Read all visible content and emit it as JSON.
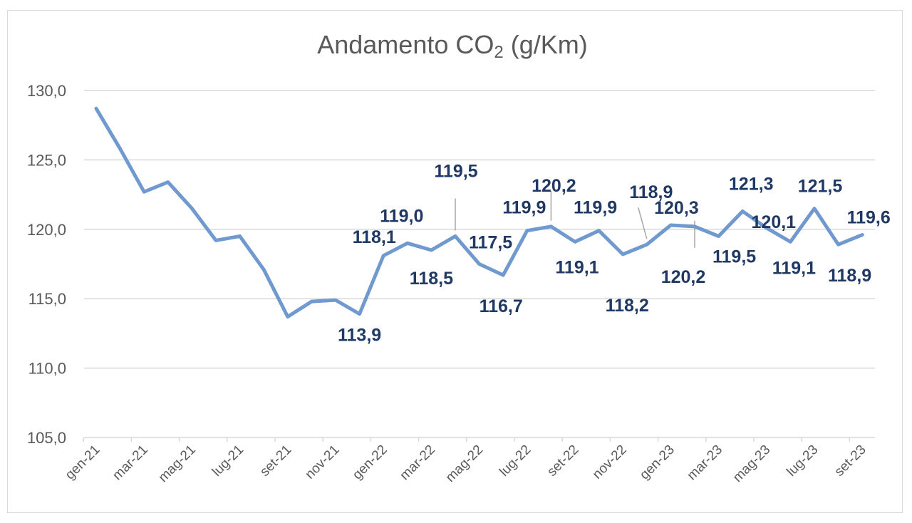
{
  "chart_data": {
    "type": "line",
    "title_main": "Andamento CO",
    "title_sub": "2",
    "title_tail": " (g/Km)",
    "ylim": [
      105,
      130
    ],
    "yticks": [
      "130,0",
      "125,0",
      "120,0",
      "115,0",
      "110,0",
      "105,0"
    ],
    "ytick_values": [
      130,
      125,
      120,
      115,
      110,
      105
    ],
    "grid": true,
    "line_color": "#6f99cf",
    "label_color": "#1f3864",
    "x": [
      "gen-21",
      "feb-21",
      "mar-21",
      "apr-21",
      "mag-21",
      "giu-21",
      "lug-21",
      "ago-21",
      "set-21",
      "ott-21",
      "nov-21",
      "dic-21",
      "gen-22",
      "feb-22",
      "mar-22",
      "apr-22",
      "mag-22",
      "giu-22",
      "lug-22",
      "ago-22",
      "set-22",
      "ott-22",
      "nov-22",
      "dic-22",
      "gen-23",
      "feb-23",
      "mar-23",
      "apr-23",
      "mag-23",
      "giu-23",
      "lug-23",
      "ago-23",
      "set-23"
    ],
    "xtick_labels": [
      "gen-21",
      "mar-21",
      "mag-21",
      "lug-21",
      "set-21",
      "nov-21",
      "gen-22",
      "mar-22",
      "mag-22",
      "lug-22",
      "set-22",
      "nov-22",
      "gen-23",
      "mar-23",
      "mag-23",
      "lug-23",
      "set-23"
    ],
    "series": [
      {
        "values": [
          128.7,
          125.8,
          122.7,
          123.4,
          121.5,
          119.2,
          119.5,
          117.1,
          113.7,
          114.8,
          114.9,
          113.9,
          118.1,
          119.0,
          118.5,
          119.5,
          117.5,
          116.7,
          119.9,
          120.2,
          119.1,
          119.9,
          118.2,
          118.9,
          120.3,
          120.2,
          119.5,
          121.3,
          120.1,
          119.1,
          121.5,
          118.9,
          119.6
        ]
      }
    ],
    "data_labels": [
      {
        "i": 11,
        "text": "113,9"
      },
      {
        "i": 12,
        "text": "118,1"
      },
      {
        "i": 13,
        "text": "119,0"
      },
      {
        "i": 14,
        "text": "118,5"
      },
      {
        "i": 15,
        "text": "119,5"
      },
      {
        "i": 16,
        "text": "117,5"
      },
      {
        "i": 17,
        "text": "116,7"
      },
      {
        "i": 18,
        "text": "119,9"
      },
      {
        "i": 19,
        "text": "120,2"
      },
      {
        "i": 20,
        "text": "119,1"
      },
      {
        "i": 21,
        "text": "119,9"
      },
      {
        "i": 22,
        "text": "118,2"
      },
      {
        "i": 23,
        "text": "118,9"
      },
      {
        "i": 24,
        "text": "120,3"
      },
      {
        "i": 25,
        "text": "120,2"
      },
      {
        "i": 26,
        "text": "119,5"
      },
      {
        "i": 27,
        "text": "121,3"
      },
      {
        "i": 28,
        "text": "120,1"
      },
      {
        "i": 29,
        "text": "119,1"
      },
      {
        "i": 30,
        "text": "121,5"
      },
      {
        "i": 31,
        "text": "118,9"
      },
      {
        "i": 32,
        "text": "119,6"
      }
    ]
  }
}
